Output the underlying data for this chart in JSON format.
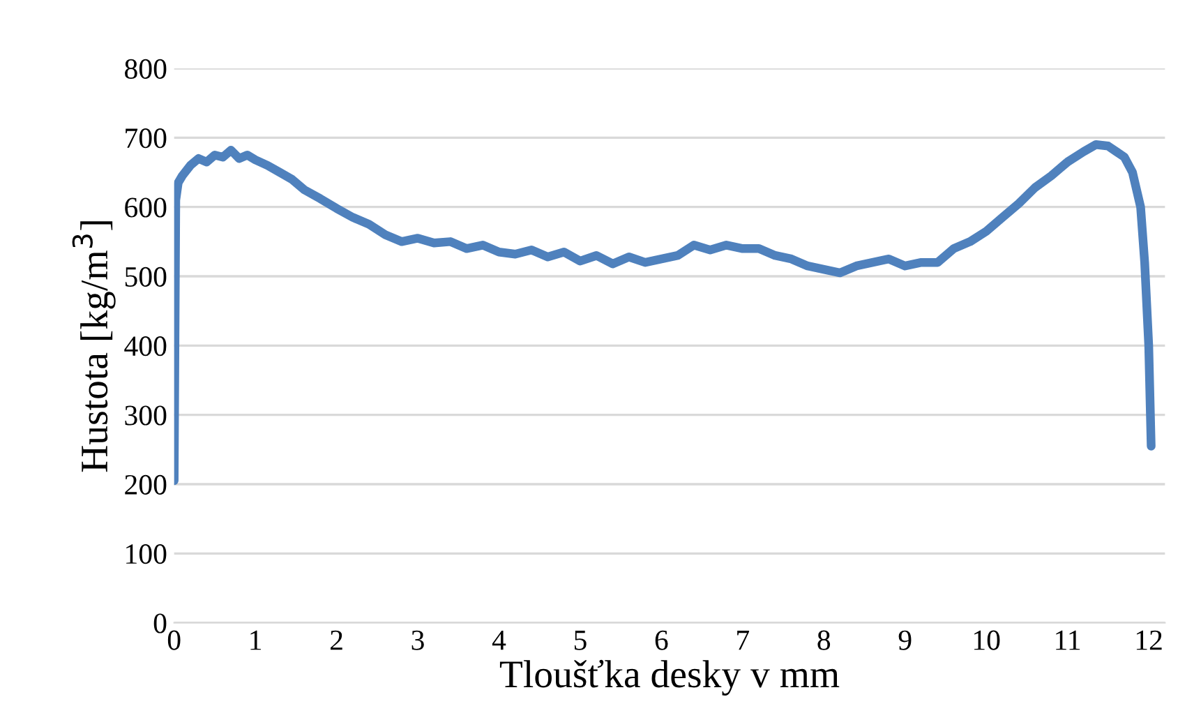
{
  "chart_data": {
    "type": "line",
    "xlabel": "Tloušťka desky v mm",
    "ylabel": "Hustota [kg/m$^{3}$]",
    "series": [
      {
        "color": "#4f81bd",
        "x": [
          0,
          0.02,
          0.05,
          0.1,
          0.2,
          0.3,
          0.4,
          0.5,
          0.6,
          0.7,
          0.8,
          0.9,
          1.0,
          1.15,
          1.3,
          1.45,
          1.6,
          1.8,
          2.0,
          2.2,
          2.4,
          2.6,
          2.8,
          3.0,
          3.2,
          3.4,
          3.6,
          3.8,
          4.0,
          4.2,
          4.4,
          4.6,
          4.8,
          5.0,
          5.2,
          5.4,
          5.6,
          5.8,
          6.0,
          6.2,
          6.4,
          6.6,
          6.8,
          7.0,
          7.2,
          7.4,
          7.6,
          7.8,
          8.0,
          8.2,
          8.4,
          8.6,
          8.8,
          9.0,
          9.2,
          9.4,
          9.6,
          9.8,
          10.0,
          10.2,
          10.4,
          10.6,
          10.8,
          11.0,
          11.2,
          11.35,
          11.5,
          11.6,
          11.7,
          11.8,
          11.9,
          11.95,
          12.0,
          12.03
        ],
        "values": [
          205,
          610,
          635,
          645,
          660,
          670,
          665,
          675,
          672,
          682,
          670,
          675,
          668,
          660,
          650,
          640,
          625,
          612,
          598,
          585,
          575,
          560,
          550,
          555,
          548,
          550,
          540,
          545,
          535,
          532,
          538,
          528,
          535,
          522,
          530,
          518,
          528,
          520,
          525,
          530,
          545,
          538,
          545,
          540,
          540,
          530,
          525,
          515,
          510,
          505,
          515,
          520,
          525,
          515,
          520,
          520,
          540,
          550,
          565,
          585,
          605,
          628,
          645,
          665,
          680,
          690,
          688,
          680,
          672,
          650,
          600,
          520,
          400,
          255
        ]
      }
    ],
    "xlim": [
      0,
      12.2
    ],
    "ylim": [
      0,
      800
    ],
    "xticks": [
      0,
      1,
      2,
      3,
      4,
      5,
      6,
      7,
      8,
      9,
      10,
      11,
      12
    ],
    "yticks": [
      0,
      100,
      200,
      300,
      400,
      500,
      600,
      700,
      800
    ],
    "grid": "y",
    "legend": false
  }
}
